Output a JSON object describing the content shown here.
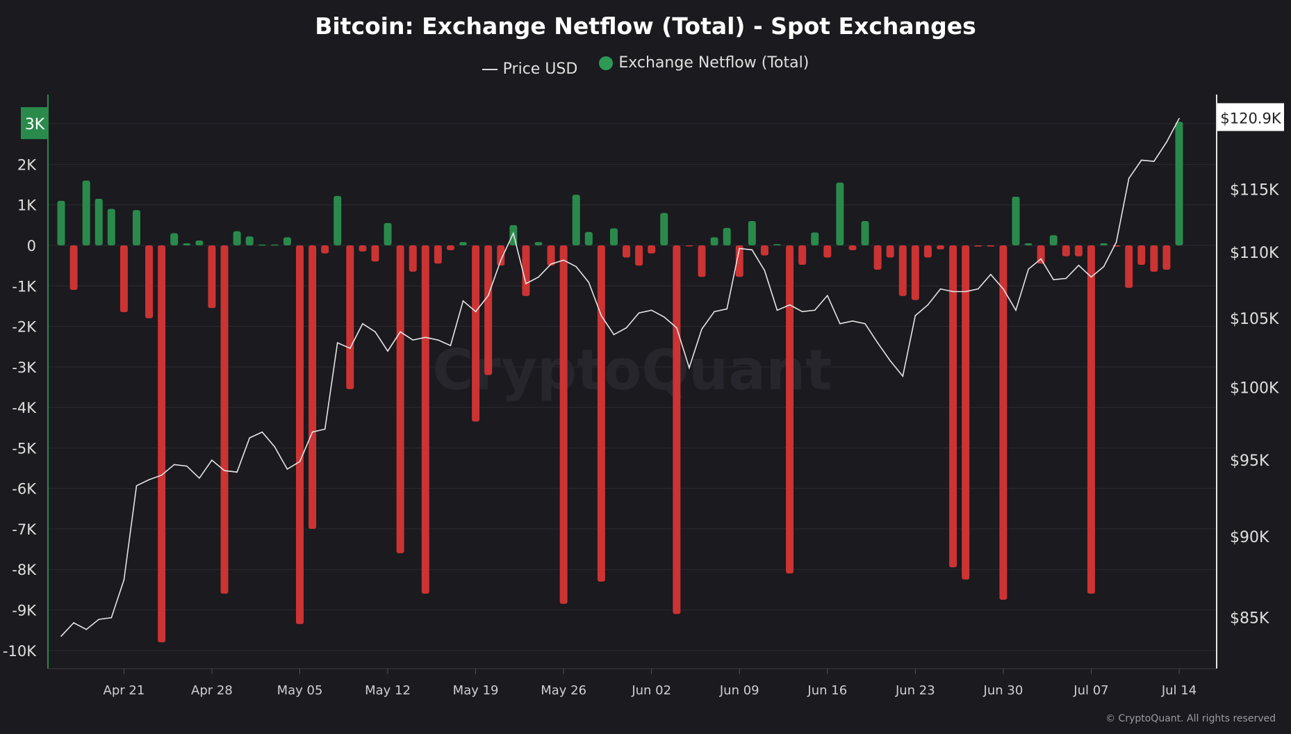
{
  "chart_data": {
    "type": "bar+line",
    "title": "Bitcoin: Exchange Netflow (Total) - Spot Exchanges",
    "legend": [
      "Price USD",
      "Exchange Netflow (Total)"
    ],
    "legend_placement": "top-center",
    "watermark": "CryptoQuant",
    "footer": "© CryptoQuant. All rights reserved",
    "colors": {
      "background": "#1a1a1f",
      "inflow": "#2a8a4c",
      "outflow": "#cc3333",
      "price": "#e6e6e6",
      "grid": "#2a2a30"
    },
    "grid": true,
    "x_tick_labels": [
      "Apr 21",
      "Apr 28",
      "May 05",
      "May 12",
      "May 19",
      "May 26",
      "Jun 02",
      "Jun 09",
      "Jun 16",
      "Jun 23",
      "Jun 30",
      "Jul 07",
      "Jul 14"
    ],
    "y_left": {
      "tick_labels": [
        "3K",
        "2K",
        "1K",
        "0",
        "-1K",
        "-2K",
        "-3K",
        "-4K",
        "-5K",
        "-6K",
        "-7K",
        "-8K",
        "-9K",
        "-10K"
      ],
      "ticks": [
        3,
        2,
        1,
        0,
        -1,
        -2,
        -3,
        -4,
        -5,
        -6,
        -7,
        -8,
        -9,
        -10
      ],
      "ylim": [
        -10.45,
        3.62
      ],
      "unit": "K BTC",
      "highlight_label": "3K"
    },
    "y_right": {
      "tick_labels": [
        "$115K",
        "$110K",
        "$105K",
        "$100K",
        "$95K",
        "$90K",
        "$85K"
      ],
      "ticks": [
        115,
        110,
        105,
        100,
        95,
        90,
        85
      ],
      "ylim": [
        82.0,
        122.6
      ],
      "scale": "log",
      "unit": "K USD",
      "current_label": "$120.9K"
    },
    "x": [
      "Apr 16",
      "Apr 17",
      "Apr 18",
      "Apr 19",
      "Apr 20",
      "Apr 21",
      "Apr 22",
      "Apr 23",
      "Apr 24",
      "Apr 25",
      "Apr 26",
      "Apr 27",
      "Apr 28",
      "Apr 29",
      "Apr 30",
      "May 01",
      "May 02",
      "May 03",
      "May 04",
      "May 05",
      "May 06",
      "May 07",
      "May 08",
      "May 09",
      "May 10",
      "May 11",
      "May 12",
      "May 13",
      "May 14",
      "May 15",
      "May 16",
      "May 17",
      "May 18",
      "May 19",
      "May 20",
      "May 21",
      "May 22",
      "May 23",
      "May 24",
      "May 25",
      "May 26",
      "May 27",
      "May 28",
      "May 29",
      "May 30",
      "May 31",
      "Jun 01",
      "Jun 02",
      "Jun 03",
      "Jun 04",
      "Jun 05",
      "Jun 06",
      "Jun 07",
      "Jun 08",
      "Jun 09",
      "Jun 10",
      "Jun 11",
      "Jun 12",
      "Jun 13",
      "Jun 14",
      "Jun 15",
      "Jun 16",
      "Jun 17",
      "Jun 18",
      "Jun 19",
      "Jun 20",
      "Jun 21",
      "Jun 22",
      "Jun 23",
      "Jun 24",
      "Jun 25",
      "Jun 26",
      "Jun 27",
      "Jun 28",
      "Jun 29",
      "Jun 30",
      "Jul 01",
      "Jul 02",
      "Jul 03",
      "Jul 04",
      "Jul 05",
      "Jul 06",
      "Jul 07",
      "Jul 08",
      "Jul 09",
      "Jul 10",
      "Jul 11",
      "Jul 12",
      "Jul 13",
      "Jul 14"
    ],
    "series": [
      {
        "name": "Exchange Netflow (Total)",
        "type": "bar",
        "axis": "left",
        "values": [
          1.1,
          -1.1,
          1.6,
          1.15,
          0.9,
          -1.65,
          0.87,
          -1.8,
          -9.8,
          0.3,
          0.05,
          0.12,
          -1.55,
          -8.6,
          0.35,
          0.22,
          0.02,
          0.02,
          0.2,
          -9.35,
          -7.0,
          -0.2,
          1.22,
          -3.55,
          -0.15,
          -0.4,
          0.55,
          -7.6,
          -0.65,
          -8.6,
          -0.45,
          -0.12,
          0.08,
          -4.35,
          -3.2,
          -0.5,
          0.5,
          -1.25,
          0.08,
          -0.5,
          -8.85,
          1.25,
          0.33,
          -8.3,
          0.42,
          -0.3,
          -0.5,
          -0.2,
          0.8,
          -9.1,
          -0.02,
          -0.78,
          0.2,
          0.43,
          -0.78,
          0.6,
          -0.25,
          0.03,
          -8.1,
          -0.48,
          0.32,
          -0.3,
          1.55,
          -0.12,
          0.6,
          -0.6,
          -0.3,
          -1.25,
          -1.35,
          -0.3,
          -0.1,
          -7.95,
          -8.25,
          -0.03,
          -0.03,
          -8.75,
          1.2,
          0.05,
          -0.45,
          0.25,
          -0.27,
          -0.27,
          -8.6,
          0.05,
          -0.03,
          -1.05,
          -0.48,
          -0.65,
          -0.6,
          3.05
        ]
      },
      {
        "name": "Price USD",
        "type": "line",
        "axis": "right",
        "values": [
          83.9,
          84.7,
          84.3,
          84.9,
          85.0,
          87.3,
          93.3,
          93.7,
          94.0,
          94.7,
          94.6,
          93.8,
          95.0,
          94.3,
          94.2,
          96.5,
          96.9,
          95.9,
          94.4,
          94.9,
          96.9,
          97.1,
          103.2,
          102.8,
          104.6,
          104.0,
          102.6,
          104.0,
          103.4,
          103.6,
          103.4,
          103.0,
          106.3,
          105.5,
          106.7,
          109.4,
          111.5,
          107.6,
          108.1,
          109.1,
          109.4,
          108.9,
          107.7,
          105.2,
          103.8,
          104.3,
          105.4,
          105.6,
          105.1,
          104.3,
          101.4,
          104.2,
          105.5,
          105.7,
          110.3,
          110.2,
          108.6,
          105.6,
          106.0,
          105.5,
          105.6,
          106.7,
          104.6,
          104.8,
          104.6,
          103.2,
          101.9,
          100.8,
          105.2,
          106.0,
          107.2,
          107.0,
          107.0,
          107.2,
          108.3,
          107.2,
          105.6,
          108.7,
          109.5,
          107.9,
          108.0,
          109.0,
          108.1,
          108.9,
          110.8,
          115.9,
          117.4,
          117.3,
          118.9,
          120.9
        ]
      }
    ]
  }
}
